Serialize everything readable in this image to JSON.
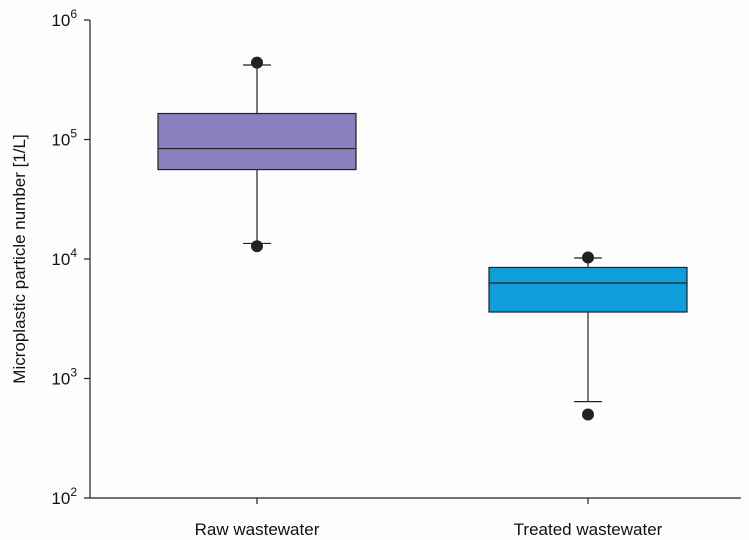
{
  "chart_data": {
    "type": "box",
    "ylabel": "Microplastic particle number [1/L]",
    "xlabel": "",
    "y_scale": "log",
    "ylim": [
      100,
      1000000
    ],
    "y_ticks": [
      {
        "base": "10",
        "exp": "2"
      },
      {
        "base": "10",
        "exp": "3"
      },
      {
        "base": "10",
        "exp": "4"
      },
      {
        "base": "10",
        "exp": "5"
      },
      {
        "base": "10",
        "exp": "6"
      }
    ],
    "categories": [
      "Raw wastewater",
      "Treated wastewater"
    ],
    "boxes": [
      {
        "category": "Raw wastewater",
        "whisker_low": 13500,
        "q1": 56000,
        "median": 84000,
        "q3": 165000,
        "whisker_high": 420000,
        "outliers": [
          12800,
          440000
        ],
        "color": "#8b7fbd"
      },
      {
        "category": "Treated wastewater",
        "whisker_low": 640,
        "q1": 3600,
        "median": 6300,
        "q3": 8500,
        "whisker_high": 10200,
        "outliers": [
          500,
          10300
        ],
        "color": "#0f9ddb"
      }
    ],
    "grid": false,
    "legend": "none"
  }
}
